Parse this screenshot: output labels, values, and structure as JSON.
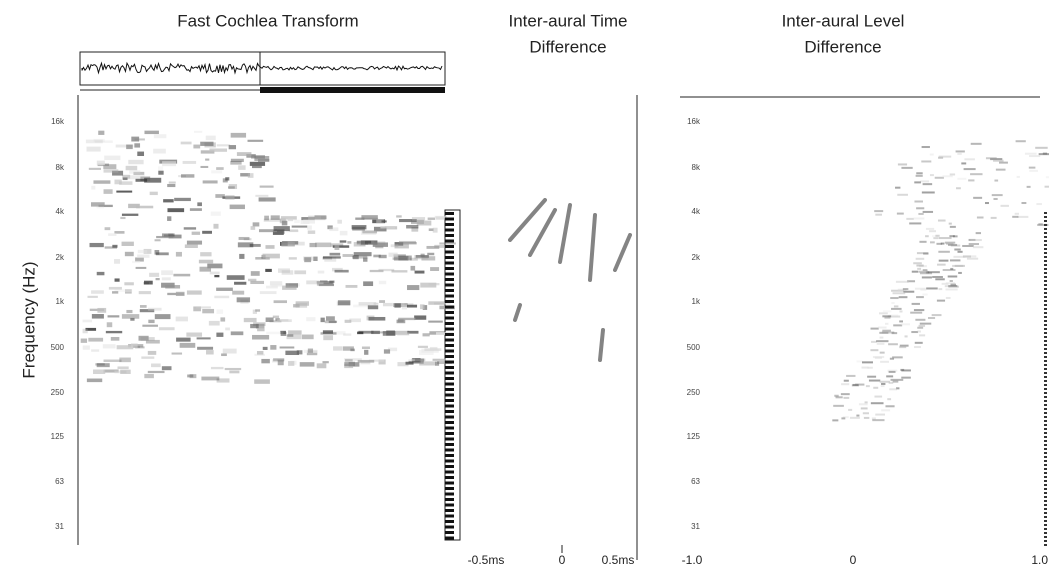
{
  "panels": [
    {
      "title": "Fast Cochlea Transform",
      "y_axis_label": "Frequency (Hz)",
      "y_tick_labels": [
        "16k",
        "8k",
        "4k",
        "2k",
        "1k",
        "500",
        "250",
        "125",
        "63",
        "31"
      ]
    },
    {
      "title_lines": [
        "Inter-aural Time",
        "Difference"
      ],
      "x_tick_labels": [
        "-0.5ms",
        "0",
        "0.5ms"
      ]
    },
    {
      "title_lines": [
        "Inter-aural Level",
        "Difference"
      ],
      "y_tick_labels": [
        "16k",
        "8k",
        "4k",
        "2k",
        "1k",
        "500",
        "250",
        "125",
        "63",
        "31"
      ],
      "x_tick_labels": [
        "-1.0",
        "0",
        "1.0"
      ]
    }
  ]
}
